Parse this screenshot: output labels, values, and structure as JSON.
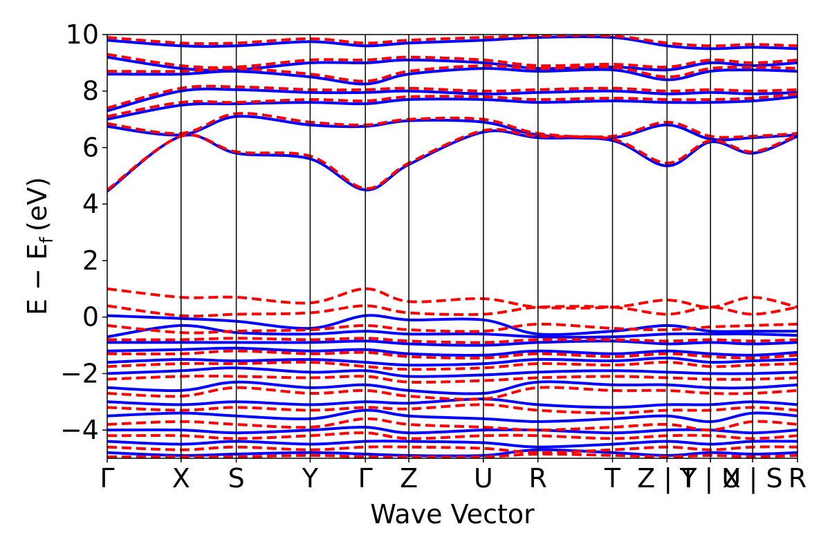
{
  "chart_data": {
    "type": "line",
    "xlabel": "Wave Vector",
    "ylabel": "E − E",
    "ylabel_subscript": "f",
    "ylabel_unit": "(eV)",
    "ylim": [
      -5,
      10
    ],
    "yticks": [
      -4,
      -2,
      0,
      2,
      4,
      6,
      8,
      10
    ],
    "ytick_labels": [
      "−4",
      "−2",
      "0",
      "2",
      "4",
      "6",
      "8",
      "10"
    ],
    "xlim": [
      0,
      1
    ],
    "kpoints": [
      {
        "pos": 0.0,
        "label": "Γ"
      },
      {
        "pos": 0.107,
        "label": "X"
      },
      {
        "pos": 0.187,
        "label": "S"
      },
      {
        "pos": 0.294,
        "label": "Y"
      },
      {
        "pos": 0.374,
        "label": "Γ"
      },
      {
        "pos": 0.437,
        "label": "Z"
      },
      {
        "pos": 0.545,
        "label": "U"
      },
      {
        "pos": 0.624,
        "label": "R"
      },
      {
        "pos": 0.732,
        "label": "T"
      },
      {
        "pos": 0.811,
        "label": "Z | Y"
      },
      {
        "pos": 0.874,
        "label": "T | U"
      },
      {
        "pos": 0.935,
        "label": "X | S"
      },
      {
        "pos": 1.0,
        "label": "R"
      }
    ],
    "grid": false,
    "colors": {
      "series_a": "#0000ff",
      "series_b": "#ff0000",
      "kpath": "#000000"
    },
    "series": [
      {
        "style": "solid",
        "color": "#0000ff",
        "bands": [
          [
            4.45,
            6.4,
            5.8,
            5.6,
            4.5,
            5.4,
            6.55,
            6.35,
            6.25,
            5.35,
            6.2,
            5.8,
            6.4
          ],
          [
            6.75,
            6.45,
            7.1,
            6.8,
            6.75,
            6.95,
            6.9,
            6.45,
            6.35,
            6.8,
            6.3,
            6.35,
            6.45
          ],
          [
            7.0,
            7.5,
            7.55,
            7.6,
            7.55,
            7.7,
            7.7,
            7.6,
            7.65,
            7.6,
            7.6,
            7.65,
            7.8
          ],
          [
            7.3,
            8.0,
            8.05,
            7.95,
            7.95,
            8.0,
            7.9,
            7.95,
            8.0,
            7.9,
            7.95,
            7.9,
            7.95
          ],
          [
            8.6,
            8.6,
            8.7,
            8.5,
            8.25,
            8.6,
            8.8,
            8.7,
            8.75,
            8.4,
            8.7,
            8.75,
            8.7
          ],
          [
            9.2,
            8.8,
            8.75,
            9.0,
            9.0,
            9.1,
            9.0,
            8.8,
            8.85,
            8.75,
            9.0,
            8.9,
            9.0
          ],
          [
            9.8,
            9.6,
            9.6,
            9.75,
            9.6,
            9.7,
            9.8,
            9.9,
            9.9,
            9.6,
            9.5,
            9.55,
            9.5
          ],
          [
            0.05,
            -0.05,
            -0.15,
            -0.4,
            0.05,
            -0.1,
            -0.1,
            -0.6,
            -0.5,
            -0.3,
            -0.5,
            -0.5,
            -0.5
          ],
          [
            -0.7,
            -0.3,
            -0.55,
            -0.6,
            -0.5,
            -0.6,
            -0.6,
            -0.7,
            -0.7,
            -0.6,
            -0.6,
            -0.6,
            -0.65
          ],
          [
            -0.9,
            -0.9,
            -0.9,
            -0.9,
            -0.85,
            -0.95,
            -1.0,
            -0.9,
            -0.85,
            -0.95,
            -0.9,
            -0.95,
            -0.9
          ],
          [
            -1.2,
            -1.15,
            -1.1,
            -1.2,
            -1.15,
            -1.3,
            -1.35,
            -1.2,
            -1.3,
            -1.2,
            -1.3,
            -1.35,
            -1.25
          ],
          [
            -1.6,
            -1.5,
            -1.55,
            -1.5,
            -1.6,
            -1.7,
            -1.65,
            -1.5,
            -1.55,
            -1.45,
            -1.6,
            -1.55,
            -1.5
          ],
          [
            -2.0,
            -1.9,
            -1.8,
            -1.95,
            -1.9,
            -2.1,
            -2.05,
            -1.95,
            -1.9,
            -1.95,
            -2.0,
            -2.0,
            -1.95
          ],
          [
            -2.5,
            -2.6,
            -2.3,
            -2.5,
            -2.4,
            -2.6,
            -2.7,
            -2.3,
            -2.4,
            -2.4,
            -2.5,
            -2.5,
            -2.4
          ],
          [
            -3.0,
            -3.1,
            -3.0,
            -3.1,
            -3.0,
            -3.05,
            -2.9,
            -3.1,
            -3.2,
            -3.1,
            -3.1,
            -3.0,
            -3.1
          ],
          [
            -3.5,
            -3.4,
            -3.5,
            -3.6,
            -3.3,
            -3.5,
            -3.6,
            -3.7,
            -3.6,
            -3.5,
            -3.7,
            -3.4,
            -3.5
          ],
          [
            -4.0,
            -4.0,
            -4.1,
            -4.0,
            -3.9,
            -4.1,
            -4.0,
            -4.0,
            -4.1,
            -4.0,
            -4.0,
            -4.1,
            -4.0
          ],
          [
            -4.4,
            -4.5,
            -4.4,
            -4.5,
            -4.4,
            -4.4,
            -4.45,
            -4.6,
            -4.5,
            -4.4,
            -4.5,
            -4.4,
            -4.4
          ],
          [
            -4.8,
            -4.9,
            -4.85,
            -4.8,
            -4.85,
            -4.9,
            -4.9,
            -4.7,
            -4.8,
            -4.9,
            -4.8,
            -4.85,
            -4.8
          ]
        ]
      },
      {
        "style": "dashed",
        "color": "#ff0000",
        "bands": [
          [
            4.5,
            6.4,
            5.85,
            5.7,
            4.55,
            5.45,
            6.6,
            6.4,
            6.3,
            5.45,
            6.25,
            5.85,
            6.45
          ],
          [
            6.85,
            6.5,
            7.2,
            6.9,
            6.8,
            7.0,
            7.0,
            6.5,
            6.4,
            6.9,
            6.4,
            6.4,
            6.5
          ],
          [
            7.1,
            7.6,
            7.6,
            7.7,
            7.65,
            7.8,
            7.8,
            7.7,
            7.75,
            7.7,
            7.7,
            7.75,
            7.9
          ],
          [
            7.4,
            8.1,
            8.15,
            8.05,
            8.05,
            8.1,
            8.0,
            8.05,
            8.1,
            8.0,
            8.05,
            8.0,
            8.05
          ],
          [
            8.7,
            8.7,
            8.8,
            8.6,
            8.35,
            8.7,
            8.9,
            8.8,
            8.85,
            8.5,
            8.8,
            8.85,
            8.8
          ],
          [
            9.3,
            8.9,
            8.85,
            9.1,
            9.1,
            9.2,
            9.1,
            8.9,
            8.95,
            8.85,
            9.1,
            9.0,
            9.1
          ],
          [
            9.9,
            9.7,
            9.7,
            9.85,
            9.7,
            9.8,
            9.9,
            9.95,
            9.95,
            9.7,
            9.6,
            9.65,
            9.6
          ],
          [
            1.0,
            0.7,
            0.7,
            0.5,
            1.0,
            0.55,
            0.65,
            0.35,
            0.35,
            0.6,
            0.35,
            0.7,
            0.35
          ],
          [
            0.4,
            0.05,
            0.1,
            0.15,
            0.4,
            0.15,
            0.1,
            0.35,
            0.35,
            0.1,
            0.35,
            0.1,
            0.35
          ],
          [
            -0.3,
            -0.55,
            -0.5,
            -0.45,
            -0.3,
            -0.45,
            -0.5,
            -0.25,
            -0.4,
            -0.45,
            -0.35,
            -0.3,
            -0.25
          ],
          [
            -0.8,
            -0.8,
            -0.75,
            -0.8,
            -0.75,
            -0.85,
            -0.9,
            -0.8,
            -0.8,
            -0.85,
            -0.8,
            -0.85,
            -0.8
          ],
          [
            -1.3,
            -1.3,
            -1.2,
            -1.3,
            -1.25,
            -1.4,
            -1.45,
            -1.3,
            -1.4,
            -1.3,
            -1.4,
            -1.45,
            -1.35
          ],
          [
            -1.75,
            -1.65,
            -1.65,
            -1.6,
            -1.75,
            -1.85,
            -1.8,
            -1.65,
            -1.7,
            -1.6,
            -1.75,
            -1.7,
            -1.65
          ],
          [
            -2.2,
            -2.1,
            -2.1,
            -2.15,
            -2.1,
            -2.3,
            -2.25,
            -2.15,
            -2.1,
            -2.15,
            -2.2,
            -2.2,
            -2.15
          ],
          [
            -2.7,
            -2.8,
            -2.5,
            -2.7,
            -2.6,
            -2.8,
            -2.9,
            -2.5,
            -2.6,
            -2.6,
            -2.7,
            -2.7,
            -2.6
          ],
          [
            -3.2,
            -3.3,
            -3.2,
            -3.3,
            -3.2,
            -3.25,
            -3.1,
            -3.3,
            -3.4,
            -3.3,
            -3.3,
            -3.2,
            -3.3
          ],
          [
            -3.8,
            -3.7,
            -3.8,
            -3.9,
            -3.6,
            -3.8,
            -3.9,
            -4.0,
            -3.9,
            -3.8,
            -4.0,
            -3.7,
            -3.8
          ],
          [
            -4.2,
            -4.2,
            -4.3,
            -4.2,
            -4.1,
            -4.3,
            -4.2,
            -4.2,
            -4.3,
            -4.2,
            -4.2,
            -4.3,
            -4.2
          ],
          [
            -4.6,
            -4.7,
            -4.6,
            -4.7,
            -4.6,
            -4.6,
            -4.65,
            -4.8,
            -4.7,
            -4.6,
            -4.7,
            -4.6,
            -4.6
          ],
          [
            -4.95,
            -4.95,
            -4.95,
            -4.9,
            -4.95,
            -4.95,
            -4.95,
            -4.85,
            -4.9,
            -4.95,
            -4.9,
            -4.95,
            -4.9
          ]
        ]
      }
    ]
  }
}
